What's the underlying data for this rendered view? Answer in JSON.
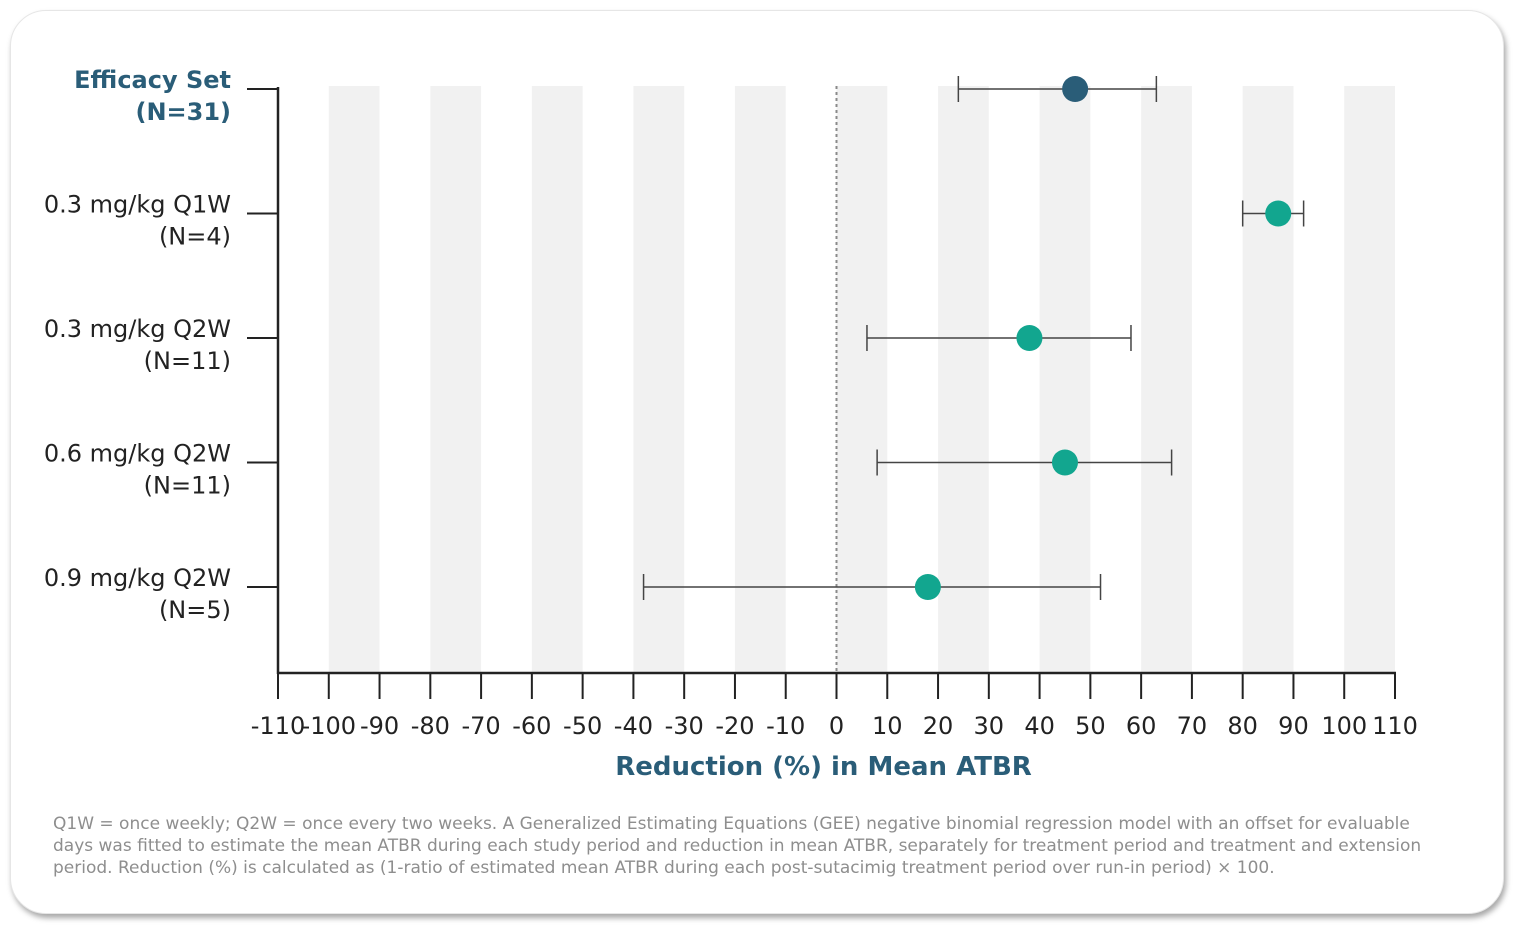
{
  "chart_data": {
    "type": "forest",
    "xlabel": "Reduction (%) in Mean ATBR",
    "xlim": [
      -110,
      110
    ],
    "xticks": [
      -110,
      -100,
      -90,
      -80,
      -70,
      -60,
      -50,
      -40,
      -30,
      -20,
      -10,
      0,
      10,
      20,
      30,
      40,
      50,
      60,
      70,
      80,
      90,
      100,
      110
    ],
    "reference_line": 0,
    "rows": [
      {
        "label": "Efficacy Set",
        "n": "(N=31)",
        "value": 47,
        "lower": 24,
        "upper": 63,
        "highlight": true,
        "color": "#2a5d78"
      },
      {
        "label": "0.3 mg/kg Q1W",
        "n": "(N=4)",
        "value": 87,
        "lower": 80,
        "upper": 92,
        "highlight": false,
        "color": "#12a68f"
      },
      {
        "label": "0.3 mg/kg Q2W",
        "n": "(N=11)",
        "value": 38,
        "lower": 6,
        "upper": 58,
        "highlight": false,
        "color": "#12a68f"
      },
      {
        "label": "0.6 mg/kg Q2W",
        "n": "(N=11)",
        "value": 45,
        "lower": 8,
        "upper": 66,
        "highlight": false,
        "color": "#12a68f"
      },
      {
        "label": "0.9 mg/kg Q2W",
        "n": "(N=5)",
        "value": 18,
        "lower": -38,
        "upper": 52,
        "highlight": false,
        "color": "#12a68f"
      }
    ],
    "colors": {
      "highlight_label": "#2a5d78",
      "axis_title": "#2a5d78",
      "band": "#f1f1f1",
      "axis": "#222222",
      "errorbar": "#444444"
    }
  },
  "footnote": "Q1W = once weekly; Q2W = once every two weeks. A Generalized Estimating Equations (GEE) negative binomial regression model with an offset for evaluable days was fitted to estimate the mean ATBR during each study period and reduction in mean ATBR, separately for treatment period and treatment and extension period. Reduction (%) is calculated as (1-ratio of estimated mean ATBR during each post-sutacimig treatment period over run-in period) × 100."
}
